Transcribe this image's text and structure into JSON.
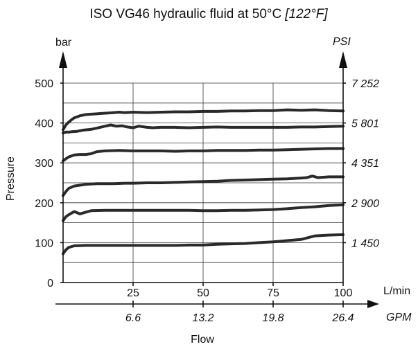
{
  "chart_data": {
    "type": "line",
    "title": "ISO VG46 hydraulic fluid at 50°C",
    "title_alt": "[122°F]",
    "ylabel": "Pressure",
    "y_unit": "bar",
    "y2_unit": "PSI",
    "xlabel": "Flow",
    "x_unit": "L/min",
    "x2_unit": "GPM",
    "xlim": [
      0,
      100
    ],
    "ylim": [
      0,
      500
    ],
    "grid": true,
    "x_ticks": [
      {
        "value": 25,
        "label": "25"
      },
      {
        "value": 50,
        "label": "50"
      },
      {
        "value": 75,
        "label": "75"
      },
      {
        "value": 100,
        "label": "100"
      }
    ],
    "x2_ticks": [
      {
        "value": 25,
        "label": "6.6"
      },
      {
        "value": 50,
        "label": "13.2"
      },
      {
        "value": 75,
        "label": "19.8"
      },
      {
        "value": 100,
        "label": "26.4"
      }
    ],
    "y_ticks": [
      {
        "value": 0,
        "label": "0"
      },
      {
        "value": 100,
        "label": "100"
      },
      {
        "value": 200,
        "label": "200"
      },
      {
        "value": 300,
        "label": "300"
      },
      {
        "value": 400,
        "label": "400"
      },
      {
        "value": 500,
        "label": "500"
      }
    ],
    "y2_ticks": [
      {
        "value": 100,
        "label": "1 450"
      },
      {
        "value": 200,
        "label": "2 900"
      },
      {
        "value": 300,
        "label": "4 351"
      },
      {
        "value": 400,
        "label": "5 801"
      },
      {
        "value": 500,
        "label": "7 252"
      }
    ],
    "series": [
      {
        "x": [
          0,
          1,
          2,
          4,
          8,
          12,
          15,
          18,
          22,
          25,
          30,
          35,
          40,
          45,
          50,
          55,
          60,
          65,
          70,
          75,
          80,
          85,
          90,
          95,
          100
        ],
        "y": [
          72,
          82,
          88,
          92,
          93,
          93,
          93,
          93,
          93,
          93,
          93,
          93,
          93,
          94,
          94,
          96,
          97,
          98,
          100,
          102,
          105,
          108,
          117,
          119,
          120
        ]
      },
      {
        "x": [
          0,
          1,
          2,
          4,
          6,
          8,
          10,
          15,
          20,
          25,
          30,
          35,
          40,
          45,
          50,
          55,
          60,
          65,
          70,
          75,
          80,
          85,
          90,
          95,
          100
        ],
        "y": [
          155,
          165,
          170,
          178,
          172,
          176,
          180,
          181,
          181,
          181,
          181,
          181,
          181,
          181,
          180,
          180,
          181,
          181,
          182,
          183,
          185,
          188,
          190,
          193,
          195
        ]
      },
      {
        "x": [
          0,
          1,
          2,
          4,
          8,
          12,
          15,
          18,
          22,
          25,
          30,
          35,
          40,
          45,
          50,
          55,
          60,
          65,
          70,
          75,
          80,
          85,
          87,
          89,
          91,
          95,
          100
        ],
        "y": [
          218,
          228,
          236,
          242,
          246,
          248,
          248,
          248,
          249,
          249,
          250,
          250,
          251,
          252,
          253,
          254,
          256,
          257,
          258,
          259,
          260,
          262,
          263,
          267,
          263,
          265,
          265
        ]
      },
      {
        "x": [
          0,
          1,
          2,
          4,
          6,
          8,
          10,
          12,
          15,
          20,
          25,
          30,
          35,
          40,
          45,
          50,
          55,
          60,
          65,
          70,
          75,
          80,
          85,
          90,
          95,
          100
        ],
        "y": [
          305,
          310,
          315,
          320,
          321,
          321,
          323,
          328,
          330,
          331,
          330,
          330,
          330,
          329,
          330,
          330,
          331,
          331,
          331,
          332,
          332,
          333,
          334,
          335,
          336,
          336
        ]
      },
      {
        "x": [
          0,
          1,
          2,
          3,
          5,
          7,
          10,
          12,
          15,
          17,
          19,
          21,
          23,
          25,
          27,
          30,
          32,
          35,
          40,
          45,
          50,
          55,
          60,
          65,
          70,
          75,
          80,
          85,
          90,
          95,
          100
        ],
        "y": [
          375,
          377,
          377,
          378,
          379,
          382,
          384,
          387,
          392,
          395,
          392,
          393,
          390,
          388,
          392,
          389,
          388,
          389,
          389,
          388,
          389,
          390,
          389,
          389,
          389,
          389,
          389,
          390,
          390,
          391,
          392
        ]
      },
      {
        "x": [
          0,
          1,
          2,
          3,
          4,
          6,
          8,
          10,
          12,
          14,
          16,
          18,
          20,
          22,
          25,
          30,
          35,
          40,
          45,
          50,
          55,
          60,
          65,
          70,
          75,
          80,
          85,
          90,
          95,
          100
        ],
        "y": [
          383,
          395,
          402,
          408,
          413,
          418,
          421,
          422,
          423,
          424,
          425,
          426,
          427,
          426,
          427,
          426,
          427,
          428,
          428,
          429,
          429,
          430,
          430,
          431,
          431,
          433,
          432,
          433,
          431,
          430
        ]
      }
    ]
  }
}
